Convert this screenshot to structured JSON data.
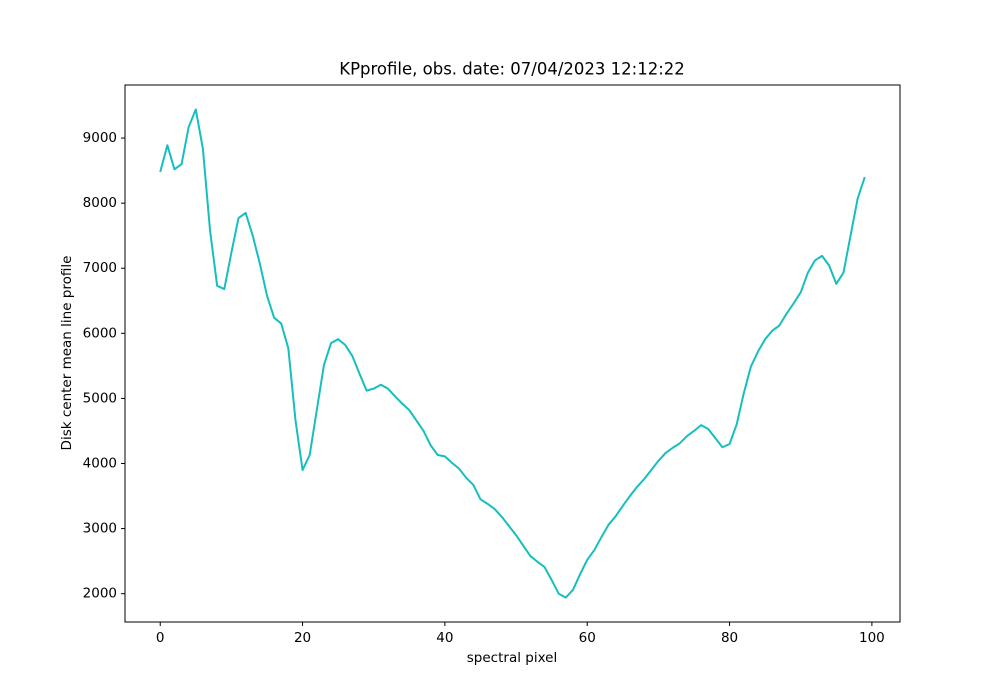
{
  "chart_data": {
    "type": "line",
    "title": "KPprofile, obs. date: 07/04/2023 12:12:22",
    "x_label": "spectral pixel",
    "y_label": "Disk center mean line profile",
    "x": [
      0,
      1,
      2,
      3,
      4,
      5,
      6,
      7,
      8,
      9,
      10,
      11,
      12,
      13,
      14,
      15,
      16,
      17,
      18,
      19,
      20,
      21,
      22,
      23,
      24,
      25,
      26,
      27,
      28,
      29,
      30,
      31,
      32,
      33,
      34,
      35,
      36,
      37,
      38,
      39,
      40,
      41,
      42,
      43,
      44,
      45,
      46,
      47,
      48,
      49,
      50,
      51,
      52,
      53,
      54,
      55,
      56,
      57,
      58,
      59,
      60,
      61,
      62,
      63,
      64,
      65,
      66,
      67,
      68,
      69,
      70,
      71,
      72,
      73,
      74,
      75,
      76,
      77,
      78,
      79,
      80,
      81,
      82,
      83,
      84,
      85,
      86,
      87,
      88,
      89,
      90,
      91,
      92,
      93,
      94,
      95,
      96,
      97,
      98,
      99
    ],
    "values": [
      8480,
      8890,
      8520,
      8600,
      9170,
      9440,
      8830,
      7580,
      6730,
      6680,
      7240,
      7770,
      7850,
      7500,
      7070,
      6580,
      6240,
      6150,
      5770,
      4670,
      3900,
      4130,
      4820,
      5510,
      5850,
      5910,
      5820,
      5650,
      5380,
      5120,
      5150,
      5210,
      5150,
      5030,
      4920,
      4820,
      4660,
      4500,
      4280,
      4130,
      4110,
      4010,
      3920,
      3780,
      3670,
      3450,
      3380,
      3300,
      3180,
      3040,
      2900,
      2740,
      2580,
      2490,
      2410,
      2210,
      2000,
      1940,
      2060,
      2300,
      2520,
      2670,
      2870,
      3060,
      3190,
      3350,
      3500,
      3640,
      3760,
      3900,
      4040,
      4160,
      4240,
      4310,
      4420,
      4500,
      4590,
      4530,
      4390,
      4250,
      4300,
      4600,
      5080,
      5490,
      5720,
      5910,
      6040,
      6120,
      6300,
      6460,
      6630,
      6930,
      7120,
      7190,
      7040,
      6760,
      6930,
      7500,
      8070,
      8400
    ],
    "color": "#17bebe",
    "xlim": [
      -4.95,
      103.95
    ],
    "xticks": [
      0,
      20,
      40,
      60,
      80,
      100
    ],
    "ylim": [
      1565,
      9815
    ],
    "yticks": [
      2000,
      3000,
      4000,
      5000,
      6000,
      7000,
      8000,
      9000
    ],
    "grid": false
  }
}
